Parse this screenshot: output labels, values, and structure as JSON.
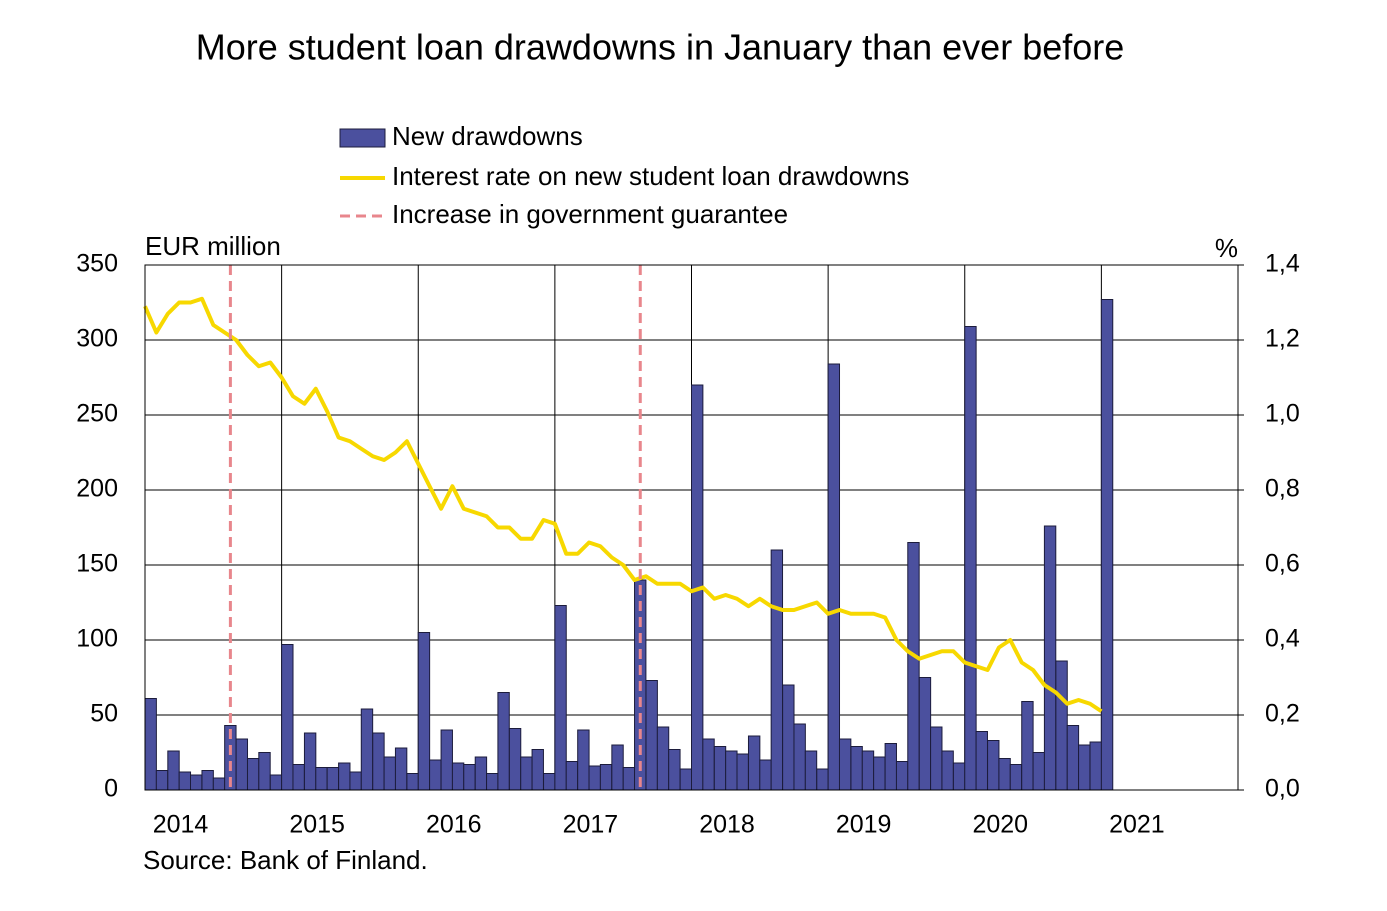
{
  "chart_data": {
    "type": "bar",
    "title": "More student loan drawdowns in January than ever before",
    "y_label": "EUR million",
    "y2_label": "%",
    "source": "Source: Bank of Finland.",
    "xlim": [
      2014,
      2022
    ],
    "xticks": [
      2014,
      2015,
      2016,
      2017,
      2018,
      2019,
      2020,
      2021
    ],
    "ylim": [
      0,
      350
    ],
    "yticks": [
      0,
      50,
      100,
      150,
      200,
      250,
      300,
      350
    ],
    "y2lim": [
      0,
      1.4
    ],
    "y2ticks": [
      {
        "value": 0,
        "label": "0,0"
      },
      {
        "value": 0.2,
        "label": "0,2"
      },
      {
        "value": 0.4,
        "label": "0,4"
      },
      {
        "value": 0.6,
        "label": "0,6"
      },
      {
        "value": 0.8,
        "label": "0,8"
      },
      {
        "value": 1.0,
        "label": "1,0"
      },
      {
        "value": 1.2,
        "label": "1,2"
      },
      {
        "value": 1.4,
        "label": "1,4"
      }
    ],
    "grid": true,
    "x": [
      2014,
      2014.083,
      2014.167,
      2014.25,
      2014.333,
      2014.417,
      2014.5,
      2014.583,
      2014.667,
      2014.75,
      2014.833,
      2014.917,
      2015,
      2015.083,
      2015.167,
      2015.25,
      2015.333,
      2015.417,
      2015.5,
      2015.583,
      2015.667,
      2015.75,
      2015.833,
      2015.917,
      2016,
      2016.083,
      2016.167,
      2016.25,
      2016.333,
      2016.417,
      2016.5,
      2016.583,
      2016.667,
      2016.75,
      2016.833,
      2016.917,
      2017,
      2017.083,
      2017.167,
      2017.25,
      2017.333,
      2017.417,
      2017.5,
      2017.583,
      2017.667,
      2017.75,
      2017.833,
      2017.917,
      2018,
      2018.083,
      2018.167,
      2018.25,
      2018.333,
      2018.417,
      2018.5,
      2018.583,
      2018.667,
      2018.75,
      2018.833,
      2018.917,
      2019,
      2019.083,
      2019.167,
      2019.25,
      2019.333,
      2019.417,
      2019.5,
      2019.583,
      2019.667,
      2019.75,
      2019.833,
      2019.917,
      2020,
      2020.083,
      2020.167,
      2020.25,
      2020.333,
      2020.417,
      2020.5,
      2020.583,
      2020.667,
      2020.75,
      2020.833,
      2020.917,
      2021
    ],
    "series": [
      {
        "name": "New drawdowns",
        "type": "bar",
        "axis": "y",
        "color": "#4b509e",
        "values": [
          61,
          13,
          26,
          12,
          10,
          13,
          8,
          43,
          34,
          21,
          25,
          10,
          97,
          17,
          38,
          15,
          15,
          18,
          12,
          54,
          38,
          22,
          28,
          11,
          105,
          20,
          40,
          18,
          17,
          22,
          11,
          65,
          41,
          22,
          27,
          11,
          123,
          19,
          40,
          16,
          17,
          30,
          15,
          140,
          73,
          42,
          27,
          14,
          270,
          34,
          29,
          26,
          24,
          36,
          20,
          160,
          70,
          44,
          26,
          14,
          284,
          34,
          29,
          26,
          22,
          31,
          19,
          165,
          75,
          42,
          26,
          18,
          309,
          39,
          33,
          21,
          17,
          59,
          25,
          176,
          86,
          43,
          30,
          32,
          327
        ]
      },
      {
        "name": "Interest rate on new student loan drawdowns",
        "type": "line",
        "axis": "y2",
        "color": "#f7d800",
        "values": [
          1.29,
          1.22,
          1.27,
          1.3,
          1.3,
          1.31,
          1.24,
          1.22,
          1.2,
          1.16,
          1.13,
          1.14,
          1.1,
          1.05,
          1.03,
          1.07,
          1.01,
          0.94,
          0.93,
          0.91,
          0.89,
          0.88,
          0.9,
          0.93,
          0.87,
          0.81,
          0.75,
          0.81,
          0.75,
          0.74,
          0.73,
          0.7,
          0.7,
          0.67,
          0.67,
          0.72,
          0.71,
          0.63,
          0.63,
          0.66,
          0.65,
          0.62,
          0.6,
          0.56,
          0.57,
          0.55,
          0.55,
          0.55,
          0.53,
          0.54,
          0.51,
          0.52,
          0.51,
          0.49,
          0.51,
          0.49,
          0.48,
          0.48,
          0.49,
          0.5,
          0.47,
          0.48,
          0.47,
          0.47,
          0.47,
          0.46,
          0.4,
          0.37,
          0.35,
          0.36,
          0.37,
          0.37,
          0.34,
          0.33,
          0.32,
          0.38,
          0.4,
          0.34,
          0.32,
          0.28,
          0.26,
          0.23,
          0.24,
          0.23,
          0.21
        ]
      }
    ],
    "reference_lines": {
      "name": "Increase in government guarantee",
      "color": "#e8868c",
      "x": [
        2014.625,
        2017.625
      ]
    }
  }
}
